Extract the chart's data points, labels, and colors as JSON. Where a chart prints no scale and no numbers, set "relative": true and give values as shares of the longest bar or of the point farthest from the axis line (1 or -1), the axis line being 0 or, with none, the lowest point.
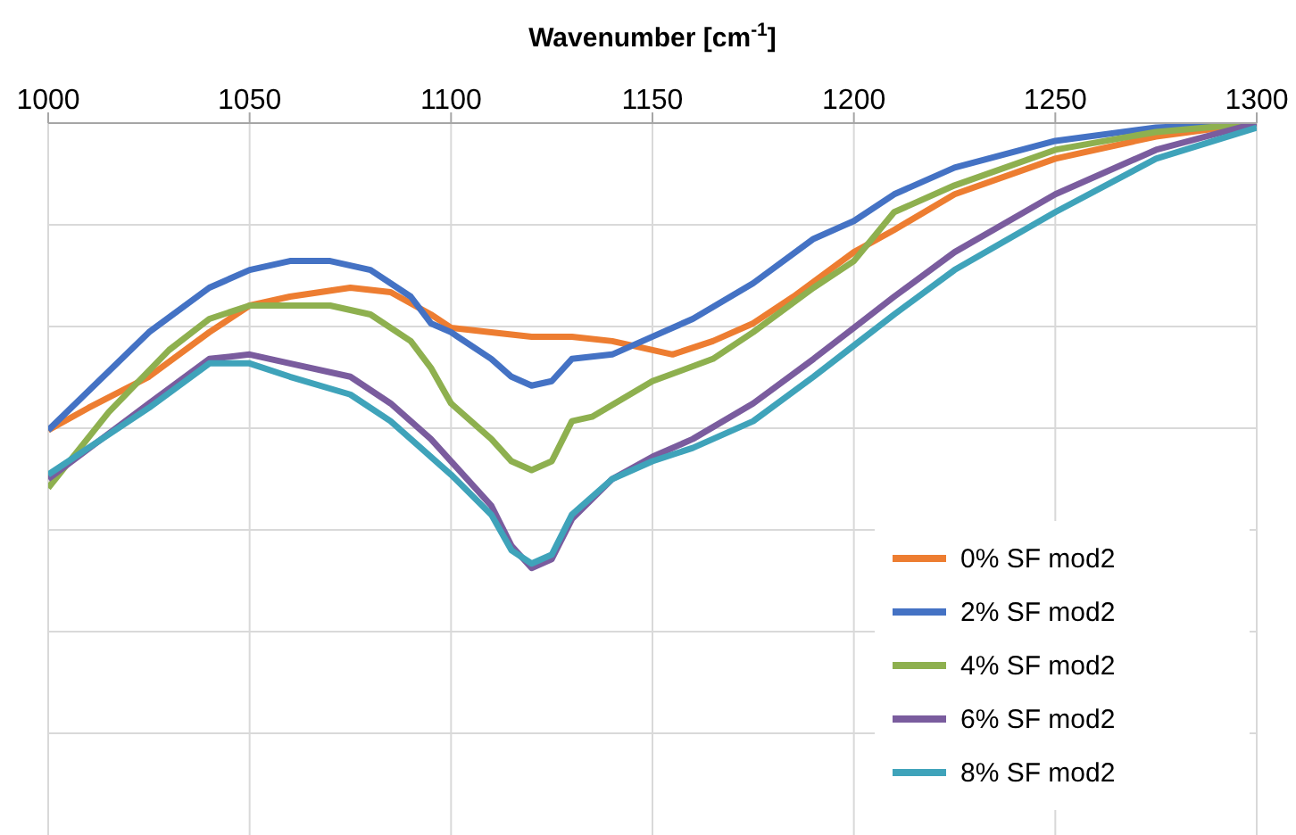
{
  "chart_data": {
    "type": "line",
    "xlabel": "Wavenumber [cm$^{-1}$]",
    "xlim": [
      1000,
      1300
    ],
    "xticks": [
      1000,
      1050,
      1100,
      1150,
      1200,
      1250,
      1300
    ],
    "relative": true,
    "grid": true,
    "legend": "bottom right",
    "marker": "none",
    "line_style": "solid",
    "series": [
      {
        "name": "0% SF mod2",
        "color": "#ed7d31",
        "x": [
          1000,
          1010,
          1025,
          1040,
          1050,
          1060,
          1075,
          1085,
          1095,
          1100,
          1110,
          1120,
          1130,
          1140,
          1150,
          1155,
          1165,
          1175,
          1185,
          1200,
          1210,
          1225,
          1250,
          1275,
          1300
        ],
        "values": [
          -0.69,
          -0.64,
          -0.57,
          -0.47,
          -0.41,
          -0.39,
          -0.37,
          -0.38,
          -0.43,
          -0.46,
          -0.47,
          -0.48,
          -0.48,
          -0.49,
          -0.51,
          -0.52,
          -0.49,
          -0.45,
          -0.39,
          -0.29,
          -0.24,
          -0.16,
          -0.08,
          -0.03,
          0
        ]
      },
      {
        "name": "2% SF mod2",
        "color": "#4472c4",
        "x": [
          1000,
          1025,
          1040,
          1050,
          1060,
          1070,
          1080,
          1090,
          1095,
          1100,
          1110,
          1115,
          1120,
          1125,
          1130,
          1140,
          1150,
          1160,
          1175,
          1190,
          1200,
          1210,
          1225,
          1250,
          1275,
          1300
        ],
        "values": [
          -0.69,
          -0.47,
          -0.37,
          -0.33,
          -0.31,
          -0.31,
          -0.33,
          -0.39,
          -0.45,
          -0.47,
          -0.53,
          -0.57,
          -0.59,
          -0.58,
          -0.53,
          -0.52,
          -0.48,
          -0.44,
          -0.36,
          -0.26,
          -0.22,
          -0.16,
          -0.1,
          -0.04,
          -0.01,
          0
        ]
      },
      {
        "name": "4% SF mod2",
        "color": "#8eb04f",
        "x": [
          1000,
          1015,
          1030,
          1040,
          1050,
          1060,
          1070,
          1080,
          1090,
          1095,
          1100,
          1110,
          1115,
          1120,
          1125,
          1130,
          1135,
          1150,
          1165,
          1175,
          1190,
          1200,
          1210,
          1225,
          1250,
          1275,
          1300
        ],
        "values": [
          -0.82,
          -0.65,
          -0.51,
          -0.44,
          -0.41,
          -0.41,
          -0.41,
          -0.43,
          -0.49,
          -0.55,
          -0.63,
          -0.71,
          -0.76,
          -0.78,
          -0.76,
          -0.67,
          -0.66,
          -0.58,
          -0.53,
          -0.47,
          -0.37,
          -0.31,
          -0.2,
          -0.14,
          -0.06,
          -0.02,
          0
        ]
      },
      {
        "name": "6% SF mod2",
        "color": "#7a5c9e",
        "x": [
          1000,
          1025,
          1040,
          1050,
          1060,
          1075,
          1085,
          1095,
          1100,
          1110,
          1115,
          1120,
          1125,
          1130,
          1140,
          1150,
          1160,
          1175,
          1190,
          1200,
          1210,
          1225,
          1250,
          1275,
          1300
        ],
        "values": [
          -0.8,
          -0.63,
          -0.53,
          -0.52,
          -0.54,
          -0.57,
          -0.63,
          -0.71,
          -0.76,
          -0.86,
          -0.95,
          -1,
          -0.98,
          -0.89,
          -0.8,
          -0.75,
          -0.71,
          -0.63,
          -0.53,
          -0.46,
          -0.39,
          -0.29,
          -0.16,
          -0.06,
          0
        ]
      },
      {
        "name": "8% SF mod2",
        "color": "#3fa3ba",
        "x": [
          1000,
          1025,
          1040,
          1050,
          1060,
          1075,
          1085,
          1095,
          1100,
          1110,
          1115,
          1120,
          1125,
          1130,
          1140,
          1150,
          1160,
          1175,
          1190,
          1200,
          1210,
          1225,
          1250,
          1275,
          1300
        ],
        "values": [
          -0.79,
          -0.64,
          -0.54,
          -0.54,
          -0.57,
          -0.61,
          -0.67,
          -0.75,
          -0.79,
          -0.88,
          -0.96,
          -0.99,
          -0.97,
          -0.88,
          -0.8,
          -0.76,
          -0.73,
          -0.67,
          -0.57,
          -0.5,
          -0.43,
          -0.33,
          -0.2,
          -0.08,
          -0.01
        ]
      }
    ]
  }
}
